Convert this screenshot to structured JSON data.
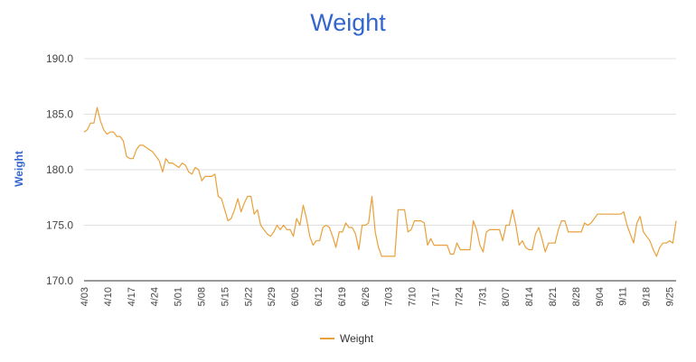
{
  "chart_data": {
    "type": "line",
    "title": "Weight",
    "ylabel": "Weight",
    "xlabel": "",
    "ylim": [
      170,
      190
    ],
    "yticks": [
      "170.0",
      "175.0",
      "180.0",
      "185.0",
      "190.0"
    ],
    "xticks": [
      "4/03",
      "4/10",
      "4/17",
      "4/24",
      "5/01",
      "5/08",
      "5/15",
      "5/22",
      "5/29",
      "6/05",
      "6/12",
      "6/19",
      "6/26",
      "7/03",
      "7/10",
      "7/17",
      "7/24",
      "7/31",
      "8/07",
      "8/14",
      "8/21",
      "8/28",
      "9/04",
      "9/11",
      "9/18",
      "9/25"
    ],
    "x_start": "4/03",
    "grid": true,
    "legend_position": "bottom",
    "color": "#e8a13a",
    "series": [
      {
        "name": "Weight",
        "values": [
          183.4,
          183.6,
          184.2,
          184.2,
          185.6,
          184.4,
          183.6,
          183.2,
          183.4,
          183.4,
          183.0,
          183.0,
          182.6,
          181.2,
          181.0,
          181.0,
          181.8,
          182.2,
          182.2,
          182.0,
          181.8,
          181.6,
          181.2,
          180.8,
          179.8,
          181.0,
          180.6,
          180.6,
          180.4,
          180.2,
          180.6,
          180.4,
          179.8,
          179.6,
          180.2,
          180.0,
          179.0,
          179.4,
          179.4,
          179.4,
          179.6,
          177.6,
          177.4,
          176.4,
          175.4,
          175.6,
          176.4,
          177.4,
          176.2,
          177.0,
          177.6,
          177.6,
          176.0,
          176.4,
          175.0,
          174.6,
          174.2,
          174.0,
          174.4,
          175.0,
          174.6,
          175.0,
          174.6,
          174.6,
          174.0,
          175.6,
          175.0,
          176.8,
          175.6,
          174.0,
          173.2,
          173.6,
          173.6,
          174.8,
          175.0,
          174.8,
          174.0,
          173.0,
          174.4,
          174.4,
          175.2,
          174.8,
          174.8,
          174.2,
          172.8,
          175.0,
          175.0,
          175.2,
          177.6,
          174.4,
          173.0,
          172.2,
          172.2,
          172.2,
          172.2,
          172.2,
          176.4,
          176.4,
          176.4,
          174.4,
          174.6,
          175.4,
          175.4,
          175.4,
          175.2,
          173.2,
          173.8,
          173.2,
          173.2,
          173.2,
          173.2,
          173.2,
          172.4,
          172.4,
          173.4,
          172.8,
          172.8,
          172.8,
          172.8,
          175.4,
          174.6,
          173.2,
          172.6,
          174.4,
          174.6,
          174.6,
          174.6,
          174.6,
          173.6,
          175.0,
          175.0,
          176.4,
          175.0,
          173.2,
          173.6,
          173.0,
          172.8,
          172.8,
          174.2,
          174.8,
          173.8,
          172.6,
          173.4,
          173.4,
          173.4,
          174.6,
          175.4,
          175.4,
          174.4,
          174.4,
          174.4,
          174.4,
          174.4,
          175.2,
          175.0,
          175.2,
          175.6,
          176.0,
          176.0,
          176.0,
          176.0,
          176.0,
          176.0,
          176.0,
          176.0,
          176.2,
          175.0,
          174.2,
          173.4,
          175.2,
          175.8,
          174.4,
          174.0,
          173.6,
          172.8,
          172.2,
          173.0,
          173.4,
          173.4,
          173.6,
          173.4,
          175.4
        ]
      }
    ]
  }
}
